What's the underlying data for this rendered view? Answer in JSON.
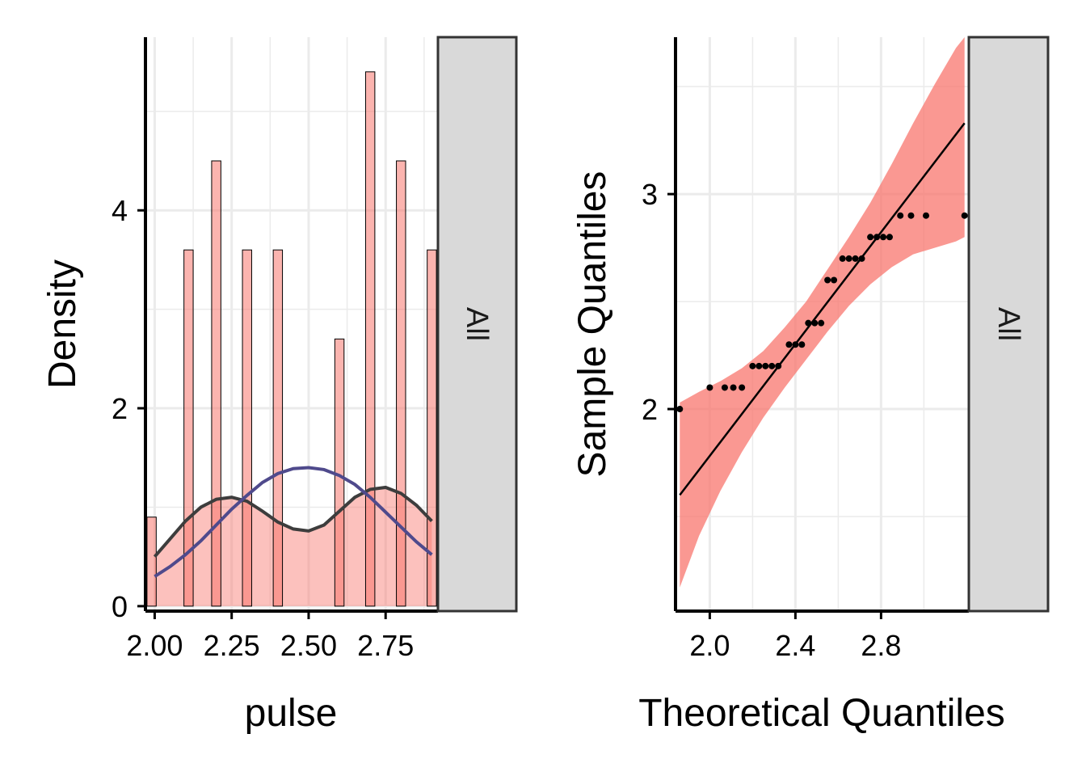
{
  "colors": {
    "bar_fill": "#f8766d",
    "bar_stroke": "#000000",
    "density_line": "#3d3d3d",
    "normal_line": "#4f4a8c",
    "ci_band": "#f8766d",
    "points": "#000000",
    "grid": "#ebebeb",
    "strip_fill": "#d9d9d9"
  },
  "chart_data": [
    {
      "type": "bar",
      "subtype": "histogram with density overlays",
      "title": "",
      "xlabel": "pulse",
      "ylabel": "Density",
      "strip_label": "All",
      "xlim": [
        1.97,
        2.92
      ],
      "ylim": [
        -0.05,
        5.75
      ],
      "x_ticks": [
        2.0,
        2.25,
        2.5,
        2.75
      ],
      "x_tick_labels": [
        "2.00",
        "2.25",
        "2.50",
        "2.75"
      ],
      "y_ticks": [
        0,
        2,
        4
      ],
      "y_tick_labels": [
        "0",
        "2",
        "4"
      ],
      "grid": true,
      "legend": "none",
      "bar_width": 0.03,
      "bars": [
        {
          "x": 1.99,
          "y": 0.9
        },
        {
          "x": 2.11,
          "y": 3.6
        },
        {
          "x": 2.2,
          "y": 4.5
        },
        {
          "x": 2.3,
          "y": 3.6
        },
        {
          "x": 2.4,
          "y": 3.6
        },
        {
          "x": 2.6,
          "y": 2.7
        },
        {
          "x": 2.7,
          "y": 5.4
        },
        {
          "x": 2.8,
          "y": 4.5
        },
        {
          "x": 2.9,
          "y": 3.6
        }
      ],
      "density_curve": {
        "x": [
          2.0,
          2.05,
          2.1,
          2.15,
          2.2,
          2.25,
          2.3,
          2.35,
          2.4,
          2.45,
          2.5,
          2.55,
          2.6,
          2.65,
          2.7,
          2.75,
          2.8,
          2.85,
          2.9
        ],
        "y": [
          0.5,
          0.68,
          0.86,
          1.0,
          1.08,
          1.1,
          1.06,
          0.96,
          0.85,
          0.78,
          0.76,
          0.82,
          0.96,
          1.1,
          1.18,
          1.2,
          1.14,
          1.02,
          0.86
        ]
      },
      "normal_curve": {
        "x": [
          2.0,
          2.05,
          2.1,
          2.15,
          2.2,
          2.25,
          2.3,
          2.35,
          2.4,
          2.45,
          2.5,
          2.55,
          2.6,
          2.65,
          2.7,
          2.75,
          2.8,
          2.85,
          2.9
        ],
        "y": [
          0.3,
          0.4,
          0.52,
          0.66,
          0.82,
          0.98,
          1.12,
          1.25,
          1.34,
          1.39,
          1.4,
          1.38,
          1.32,
          1.23,
          1.1,
          0.95,
          0.8,
          0.65,
          0.52
        ]
      }
    },
    {
      "type": "scatter",
      "subtype": "normal Q-Q plot with reference line and confidence band",
      "title": "",
      "xlabel": "Theoretical Quantiles",
      "ylabel": "Sample Quantiles",
      "strip_label": "All",
      "xlim": [
        1.84,
        3.21
      ],
      "ylim": [
        1.06,
        3.73
      ],
      "x_ticks": [
        2.0,
        2.4,
        2.8
      ],
      "x_tick_labels": [
        "2.0",
        "2.4",
        "2.8"
      ],
      "y_ticks": [
        2,
        3
      ],
      "y_tick_labels": [
        "2",
        "3"
      ],
      "grid": true,
      "legend": "none",
      "points": [
        [
          1.86,
          2.0
        ],
        [
          2.0,
          2.1
        ],
        [
          2.07,
          2.1
        ],
        [
          2.11,
          2.1
        ],
        [
          2.15,
          2.1
        ],
        [
          2.2,
          2.2
        ],
        [
          2.23,
          2.2
        ],
        [
          2.26,
          2.2
        ],
        [
          2.29,
          2.2
        ],
        [
          2.32,
          2.2
        ],
        [
          2.37,
          2.3
        ],
        [
          2.4,
          2.3
        ],
        [
          2.43,
          2.3
        ],
        [
          2.46,
          2.4
        ],
        [
          2.49,
          2.4
        ],
        [
          2.52,
          2.4
        ],
        [
          2.55,
          2.6
        ],
        [
          2.58,
          2.6
        ],
        [
          2.62,
          2.7
        ],
        [
          2.65,
          2.7
        ],
        [
          2.68,
          2.7
        ],
        [
          2.71,
          2.7
        ],
        [
          2.75,
          2.8
        ],
        [
          2.78,
          2.8
        ],
        [
          2.81,
          2.8
        ],
        [
          2.84,
          2.8
        ],
        [
          2.89,
          2.9
        ],
        [
          2.94,
          2.9
        ],
        [
          3.01,
          2.9
        ],
        [
          3.19,
          2.9
        ]
      ],
      "reference_line": {
        "x": [
          1.86,
          3.19
        ],
        "y": [
          1.6,
          3.33
        ]
      },
      "ci_band": {
        "x": [
          1.86,
          1.95,
          2.05,
          2.15,
          2.25,
          2.35,
          2.45,
          2.55,
          2.65,
          2.75,
          2.85,
          2.95,
          3.05,
          3.15,
          3.19
        ],
        "lower": [
          1.17,
          1.41,
          1.62,
          1.8,
          1.96,
          2.1,
          2.23,
          2.36,
          2.48,
          2.58,
          2.66,
          2.72,
          2.75,
          2.78,
          2.8
        ],
        "upper": [
          2.03,
          2.08,
          2.13,
          2.19,
          2.27,
          2.38,
          2.5,
          2.65,
          2.8,
          2.96,
          3.14,
          3.33,
          3.51,
          3.68,
          3.73
        ]
      }
    }
  ]
}
